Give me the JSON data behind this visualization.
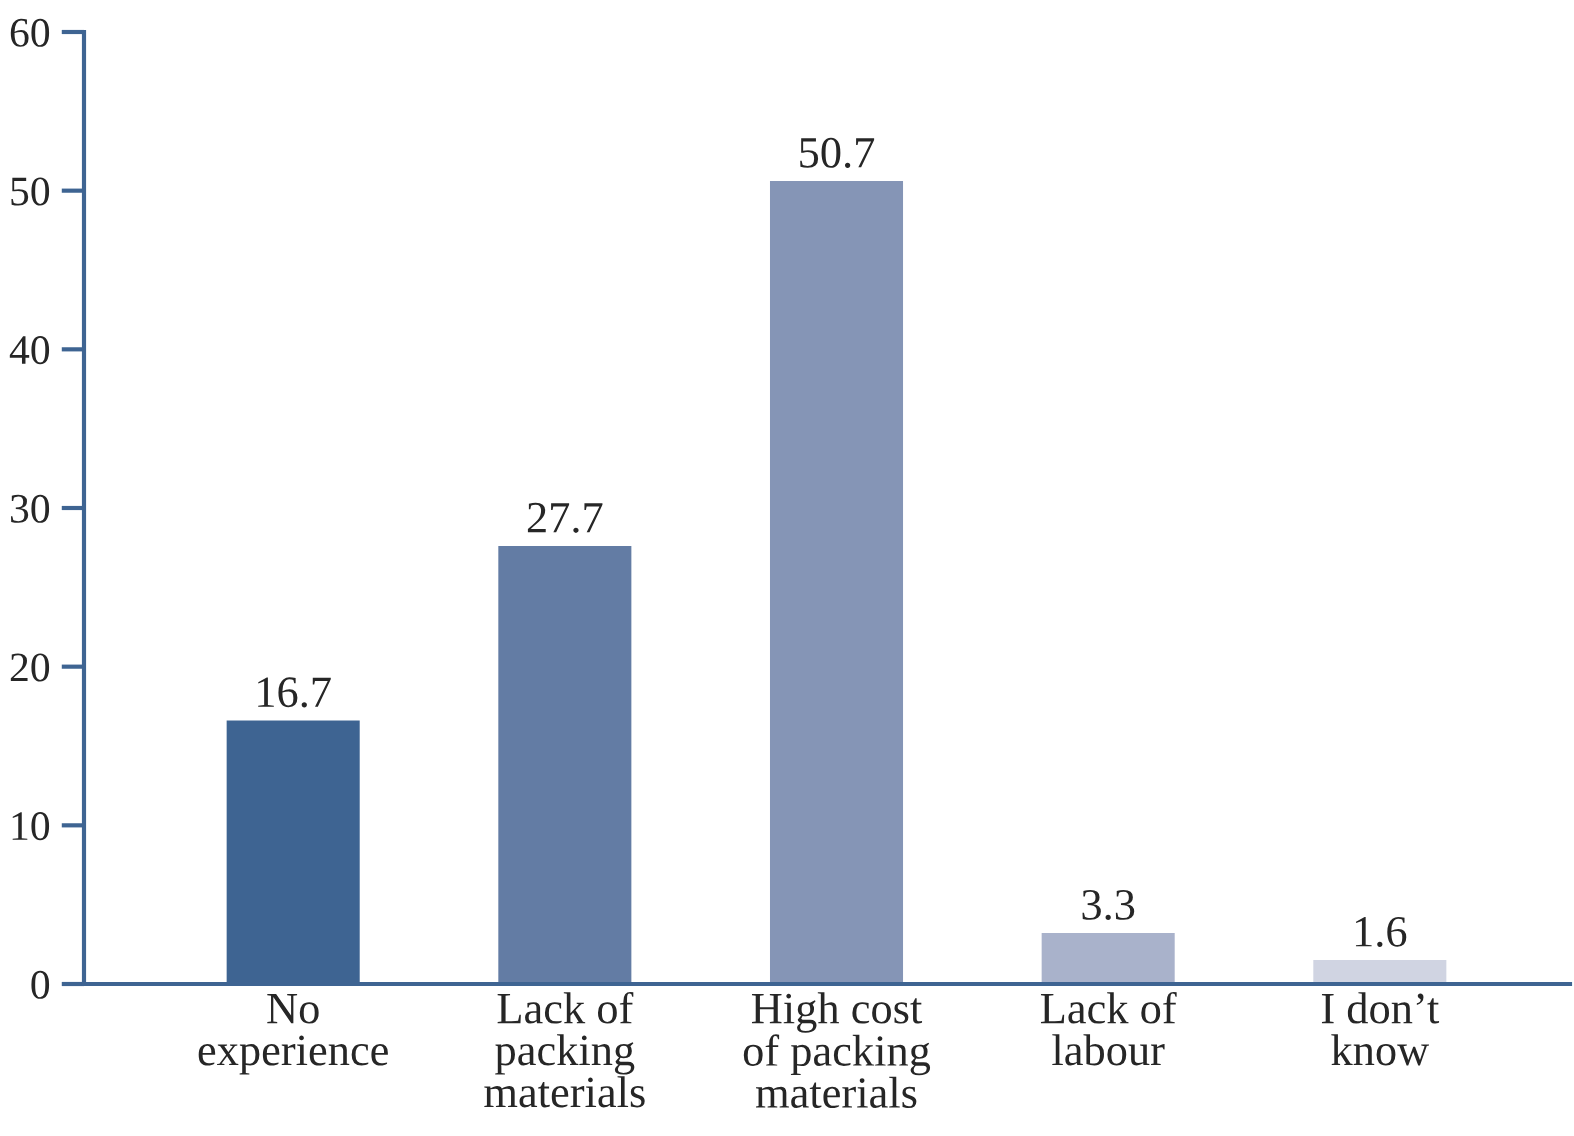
{
  "chart_data": {
    "type": "bar",
    "categories": [
      "No\nexperience",
      "Lack of\npacking\nmaterials",
      "High cost\nof packing\nmaterials",
      "Lack of\nlabour",
      "I don’t\nknow"
    ],
    "values": [
      16.7,
      27.7,
      50.7,
      3.3,
      1.6
    ],
    "colors": [
      "#3e6492",
      "#637ca4",
      "#8595b6",
      "#a9b2cb",
      "#d0d4e2"
    ],
    "ylim": [
      0,
      60
    ],
    "yticks": [
      0,
      10,
      20,
      30,
      40,
      50,
      60
    ],
    "data_labels": true,
    "grid": false,
    "legend": false
  }
}
